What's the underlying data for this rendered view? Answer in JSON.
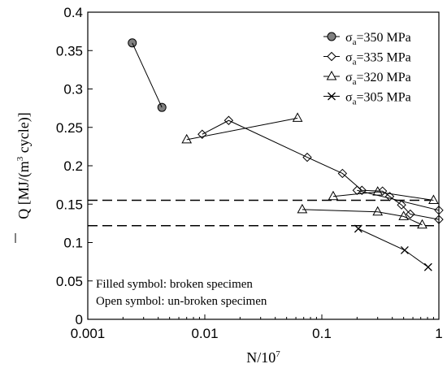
{
  "chart_data": {
    "type": "scatter",
    "xscale": "log",
    "xlabel_base": "N/10",
    "xlabel_exp": "7",
    "ylabel_pre": "Q",
    "ylabel_post": " [MJ/(m",
    "ylabel_exp": "3",
    "ylabel_end": " cycle)]",
    "xlim": [
      0.001,
      1
    ],
    "ylim": [
      0,
      0.4
    ],
    "xticks": [
      0.001,
      0.01,
      0.1,
      1
    ],
    "xtick_labels": [
      "0.001",
      "0.01",
      "0.1",
      "1"
    ],
    "yticks": [
      0,
      0.05,
      0.1,
      0.15,
      0.2,
      0.25,
      0.3,
      0.35,
      0.4
    ],
    "ytick_labels": [
      "0",
      "0.05",
      "0.1",
      "0.15",
      "0.2",
      "0.25",
      "0.3",
      "0.35",
      "0.4"
    ],
    "hlines": [
      0.155,
      0.122
    ],
    "series": [
      {
        "name_pre": "σ",
        "name_sub": "a",
        "name_post": "=350 MPa",
        "marker": "filled-circle",
        "color": "#808080",
        "lines": [
          [
            [
              0.0024,
              0.36
            ],
            [
              0.0043,
              0.276
            ]
          ]
        ]
      },
      {
        "name_pre": "σ",
        "name_sub": "a",
        "name_post": "=335 MPa",
        "marker": "open-diamond",
        "color": "#ffffff",
        "lines": [
          [
            [
              0.0095,
              0.241
            ],
            [
              0.016,
              0.259
            ],
            [
              0.075,
              0.211
            ],
            [
              0.15,
              0.19
            ],
            [
              0.22,
              0.168
            ],
            [
              0.33,
              0.167
            ],
            [
              0.38,
              0.16
            ],
            [
              0.48,
              0.149
            ],
            [
              0.57,
              0.137
            ],
            [
              1.0,
              0.13
            ]
          ],
          [
            [
              0.2,
              0.168
            ],
            [
              1.0,
              0.142
            ]
          ]
        ]
      },
      {
        "name_pre": "σ",
        "name_sub": "a",
        "name_post": "=320 MPa",
        "marker": "open-triangle",
        "color": "#ffffff",
        "lines": [
          [
            [
              0.007,
              0.234
            ],
            [
              0.062,
              0.262
            ]
          ],
          [
            [
              0.068,
              0.143
            ],
            [
              0.3,
              0.14
            ],
            [
              0.5,
              0.134
            ],
            [
              0.72,
              0.123
            ]
          ],
          [
            [
              0.125,
              0.16
            ],
            [
              0.3,
              0.166
            ],
            [
              0.9,
              0.155
            ]
          ]
        ]
      },
      {
        "name_pre": "σ",
        "name_sub": "a",
        "name_post": "=305 MPa",
        "marker": "x",
        "color": "#000000",
        "lines": [
          [
            [
              0.205,
              0.118
            ],
            [
              0.51,
              0.09
            ],
            [
              0.81,
              0.068
            ]
          ]
        ]
      }
    ],
    "legend_position": "top-right",
    "annotations": [
      "Filled symbol: broken specimen",
      "Open symbol: un-broken specimen"
    ]
  }
}
